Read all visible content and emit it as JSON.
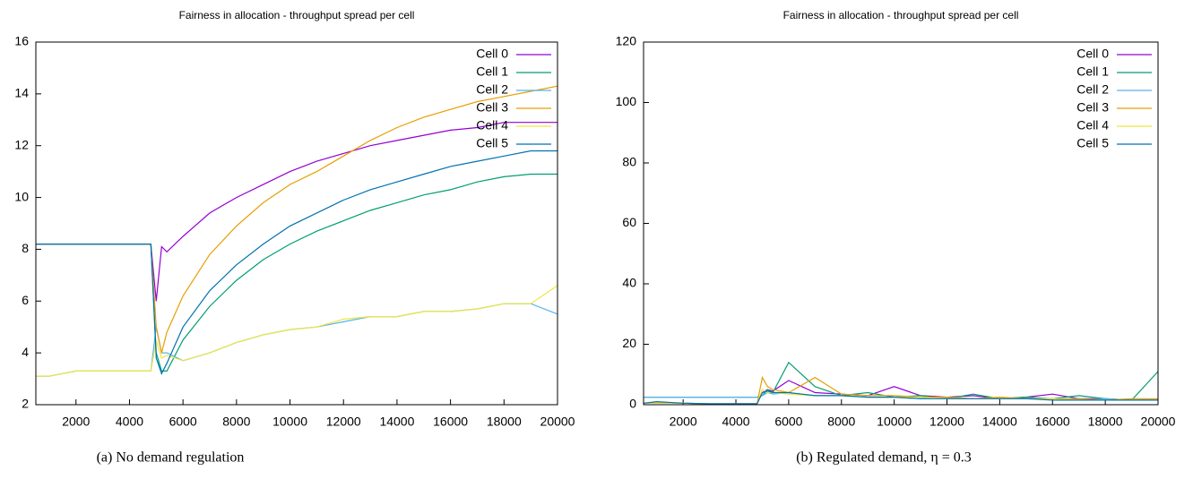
{
  "chart_data": [
    {
      "type": "line",
      "title": "Fairness in allocation - throughput spread per cell",
      "caption": "(a) No demand regulation",
      "x": [
        500,
        1000,
        2000,
        3000,
        4000,
        4800,
        5000,
        5200,
        5400,
        6000,
        7000,
        8000,
        9000,
        10000,
        11000,
        12000,
        13000,
        14000,
        15000,
        16000,
        17000,
        18000,
        19000,
        20000
      ],
      "xlim": [
        500,
        20000
      ],
      "xticks": [
        2000,
        4000,
        6000,
        8000,
        10000,
        12000,
        14000,
        16000,
        18000,
        20000
      ],
      "ylim": [
        2,
        16
      ],
      "yticks": [
        2,
        4,
        6,
        8,
        10,
        12,
        14,
        16
      ],
      "legend": "top-right",
      "series": [
        {
          "name": "Cell 0",
          "color": "#9400d3",
          "values": [
            8.2,
            8.2,
            8.2,
            8.2,
            8.2,
            8.2,
            6.0,
            8.1,
            7.9,
            8.5,
            9.4,
            10.0,
            10.5,
            11.0,
            11.4,
            11.7,
            12.0,
            12.2,
            12.4,
            12.6,
            12.7,
            12.9,
            12.9,
            12.9
          ]
        },
        {
          "name": "Cell 1",
          "color": "#009e73",
          "values": [
            8.2,
            8.2,
            8.2,
            8.2,
            8.2,
            8.2,
            4.0,
            3.3,
            3.3,
            4.5,
            5.8,
            6.8,
            7.6,
            8.2,
            8.7,
            9.1,
            9.5,
            9.8,
            10.1,
            10.3,
            10.6,
            10.8,
            10.9,
            10.9
          ]
        },
        {
          "name": "Cell 2",
          "color": "#56b4e9",
          "values": [
            3.1,
            3.1,
            3.3,
            3.3,
            3.3,
            3.3,
            5.0,
            4.0,
            4.0,
            3.7,
            4.0,
            4.4,
            4.7,
            4.9,
            5.0,
            5.2,
            5.4,
            5.4,
            5.6,
            5.6,
            5.7,
            5.9,
            5.9,
            5.5
          ]
        },
        {
          "name": "Cell 3",
          "color": "#e69f00",
          "values": [
            8.2,
            8.2,
            8.2,
            8.2,
            8.2,
            8.2,
            5.0,
            4.0,
            4.8,
            6.2,
            7.8,
            8.9,
            9.8,
            10.5,
            11.0,
            11.6,
            12.2,
            12.7,
            13.1,
            13.4,
            13.7,
            13.9,
            14.1,
            14.3
          ]
        },
        {
          "name": "Cell 4",
          "color": "#f0e442",
          "values": [
            3.1,
            3.1,
            3.3,
            3.3,
            3.3,
            3.3,
            4.5,
            3.8,
            3.9,
            3.7,
            4.0,
            4.4,
            4.7,
            4.9,
            5.0,
            5.3,
            5.4,
            5.4,
            5.6,
            5.6,
            5.7,
            5.9,
            5.9,
            6.6
          ]
        },
        {
          "name": "Cell 5",
          "color": "#0072b2",
          "values": [
            8.2,
            8.2,
            8.2,
            8.2,
            8.2,
            8.2,
            3.8,
            3.2,
            3.6,
            5.0,
            6.4,
            7.4,
            8.2,
            8.9,
            9.4,
            9.9,
            10.3,
            10.6,
            10.9,
            11.2,
            11.4,
            11.6,
            11.8,
            11.8
          ]
        }
      ]
    },
    {
      "type": "line",
      "title": "Fairness in allocation - throughput spread per cell",
      "caption": "(b) Regulated demand, η = 0.3",
      "x": [
        500,
        1000,
        2000,
        3000,
        4000,
        4800,
        5000,
        5200,
        5400,
        6000,
        7000,
        8000,
        9000,
        10000,
        11000,
        12000,
        13000,
        14000,
        15000,
        16000,
        17000,
        18000,
        19000,
        20000
      ],
      "xlim": [
        500,
        20000
      ],
      "xticks": [
        2000,
        4000,
        6000,
        8000,
        10000,
        12000,
        14000,
        16000,
        18000,
        20000
      ],
      "ylim": [
        0,
        120
      ],
      "yticks": [
        0,
        20,
        40,
        60,
        80,
        100,
        120
      ],
      "legend": "top-right",
      "series": [
        {
          "name": "Cell 0",
          "color": "#9400d3",
          "values": [
            0.5,
            0.5,
            0.5,
            0.3,
            0.3,
            0.3,
            4.0,
            5.0,
            4.5,
            8.0,
            4.0,
            3.5,
            3.0,
            6.0,
            3.0,
            2.5,
            3.0,
            2.0,
            2.5,
            3.5,
            2.0,
            2.0,
            1.5,
            1.5
          ]
        },
        {
          "name": "Cell 1",
          "color": "#009e73",
          "values": [
            2.5,
            2.5,
            2.5,
            2.5,
            2.5,
            2.5,
            3.0,
            5.0,
            4.0,
            14.0,
            6.0,
            3.0,
            4.0,
            2.5,
            3.0,
            2.0,
            3.5,
            2.0,
            2.5,
            2.0,
            3.0,
            2.0,
            1.5,
            11.0
          ]
        },
        {
          "name": "Cell 2",
          "color": "#56b4e9",
          "values": [
            2.5,
            2.5,
            2.5,
            2.5,
            2.5,
            2.5,
            3.0,
            4.0,
            3.5,
            4.0,
            3.0,
            3.0,
            2.5,
            2.5,
            2.0,
            2.5,
            2.0,
            2.0,
            2.0,
            2.0,
            1.5,
            2.0,
            1.5,
            1.5
          ]
        },
        {
          "name": "Cell 3",
          "color": "#e69f00",
          "values": [
            0.5,
            0.5,
            0.5,
            0.3,
            0.3,
            0.3,
            9.0,
            6.0,
            5.0,
            4.0,
            9.0,
            3.5,
            3.0,
            3.0,
            2.5,
            2.5,
            2.0,
            2.5,
            2.0,
            2.0,
            2.0,
            1.5,
            2.0,
            2.0
          ]
        },
        {
          "name": "Cell 4",
          "color": "#f0e442",
          "values": [
            0.5,
            0.5,
            0.5,
            0.3,
            0.3,
            0.3,
            5.0,
            4.0,
            4.0,
            3.5,
            3.0,
            3.0,
            2.5,
            2.5,
            2.5,
            2.0,
            2.0,
            2.0,
            2.0,
            2.0,
            1.5,
            1.5,
            1.5,
            1.5
          ]
        },
        {
          "name": "Cell 5",
          "color": "#0072b2",
          "values": [
            0.5,
            1.0,
            0.5,
            0.3,
            0.3,
            0.3,
            4.0,
            4.5,
            4.0,
            4.0,
            3.0,
            3.0,
            2.5,
            2.5,
            2.0,
            2.0,
            2.0,
            2.0,
            2.0,
            1.5,
            1.5,
            1.5,
            1.5,
            1.5
          ]
        }
      ]
    }
  ]
}
